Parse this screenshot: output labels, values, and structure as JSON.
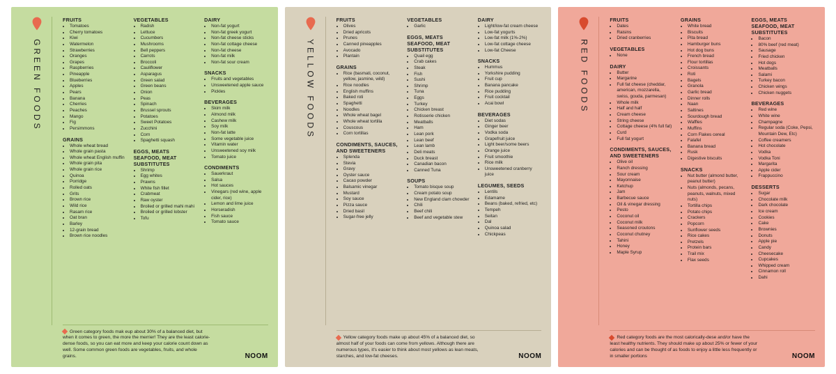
{
  "brand": "NOOM",
  "cards": [
    {
      "key": "green",
      "title": "GREEN FOODS",
      "bg_color": "#c5dca0",
      "pin_color": "#e86a4f",
      "line_color": "#9dbb72",
      "diamond_color": "#e86a4f",
      "footer": "Green category foods mak eup about 30% of a balanced diet, but when it comes to green, the more the merrier! They are the least calorie-dense foods, so you can eat more and keep your calorie count down as well. Some common green foods are vegetables, fruits, and whole grains.",
      "columns": [
        [
          {
            "title": "FRUITS",
            "items": [
              "Tomatoes",
              "Cherry tomatoes",
              "Kiwi",
              "Watermelon",
              "Strawberries",
              "Oranges",
              "Grapes",
              "Raspberries",
              "Pineapple",
              "Blueberries",
              "Apples",
              "Pears",
              "Banana",
              "Cherries",
              "Peaches",
              "Mango",
              "Fig",
              "Persimmons"
            ]
          },
          {
            "title": "GRAINS",
            "items": [
              "Whole wheat bread",
              "Whole grain pasta",
              "Whole wheat English muffin",
              "Whole grain pita",
              "Whole grain rice",
              "Quinoa",
              "Porridge",
              "Rolled oats",
              "Grits",
              "Brown rice",
              "Wild rice",
              "Rasam rice",
              "Oat bran",
              "Barley",
              "12-grain bread",
              "Brown rice noodles"
            ]
          }
        ],
        [
          {
            "title": "VEGETABLES",
            "items": [
              "Radish",
              "Lettuce",
              "Cucumbers",
              "Mushrooms",
              "Bell peppers",
              "Carrots",
              "Broccoli",
              "Cauliflower",
              "Asparagus",
              "Green salad",
              "Green beans",
              "Onion",
              "Peas",
              "Spinach",
              "Brussel sprouts",
              "Potatoes",
              "Sweet Potatoes",
              "Zucchini",
              "Corn",
              "Spaghetti squash"
            ]
          },
          {
            "title": "EGGS, MEATS SEAFOOD, MEAT SUBSTITUTES",
            "items": [
              "Shrimp",
              "Egg whites",
              "Prawns",
              "White fish fillet",
              "Crabmeat",
              "Raw oyster",
              "Broiled or grilled mahi mahi",
              "Broiled or grilled lobster",
              "Tofu"
            ]
          }
        ],
        [
          {
            "title": "DAIRY",
            "items": [
              "Non-fat yogurt",
              "Non-fat greek yogurt",
              "Non-fat cheese sticks",
              "Non-fat cottage cheese",
              "Non-fat cheese",
              "Non-fat milk",
              "Non-fat sour cream"
            ]
          },
          {
            "title": "SNACKS",
            "items": [
              "Fruits and vegetables",
              "Unsweetened apple sauce",
              "Pickles"
            ]
          },
          {
            "title": "BEVERAGES",
            "items": [
              "Skim milk",
              "Almond milk",
              "Cashew milk",
              "Soy milk",
              "Non-fat latte",
              "Some vegetable juice",
              "Vitamin water",
              "Unsweetened soy milk",
              "Tomato juice"
            ]
          },
          {
            "title": "CONDIMENTS",
            "items": [
              "Sauerkraut",
              "Salsa",
              "Hot sauces",
              "Vinegars (red wine, apple cider, rice)",
              "Lemon and lime juice",
              "Horseradish",
              "Fish sauce",
              "Tomato sauce"
            ]
          }
        ]
      ]
    },
    {
      "key": "yellow",
      "title": "YELLOW FOODS",
      "bg_color": "#d9d1bd",
      "pin_color": "#e86a4f",
      "line_color": "#b7ad93",
      "diamond_color": "#e86a4f",
      "footer": "Yellow category foods make up about 45% of a balanced diet, so almost half of your foods can come from yellows. Although there are numerous types, it's easier to think about most yellows as lean meats, starches, and low-fat cheeses.",
      "columns": [
        [
          {
            "title": "FRUITS",
            "items": [
              "Olives",
              "Dried apricots",
              "Prunes",
              "Canned pineapples",
              "Avocado",
              "Plantain"
            ]
          },
          {
            "title": "GRAINS",
            "items": [
              "Rice (basmati, coconut, yellow, jasmine, wild)",
              "Rice noodles",
              "English muffins",
              "Baked roti",
              "Spaghetti",
              "Noodles",
              "Whole wheat bagel",
              "Whole wheat tortilla",
              "Couscous",
              "Corn tortillas"
            ]
          },
          {
            "title": "CONDIMENTS, SAUCES, AND SWEETENERS",
            "items": [
              "Splenda",
              "Stevia",
              "Gravy",
              "Oyster sauce",
              "Cacao powder",
              "Balsamic vinegar",
              "Mustard",
              "Soy sauce",
              "Pizza sauce",
              "Dried basil",
              "Sugar-free jelly"
            ]
          }
        ],
        [
          {
            "title": "VEGETABLES",
            "items": [
              "Garlic"
            ]
          },
          {
            "title": "EGGS, MEATS SEAFOOD, MEAT SUBSTITUTES",
            "items": [
              "Quail egg",
              "Crab cakes",
              "Steak",
              "Fish",
              "Sushi",
              "Shrimp",
              "Tuna",
              "Eggs",
              "Turkey",
              "Chicken breast",
              "Rotisserie chicken",
              "Meatballs",
              "Ham",
              "Lean pork",
              "Lean beef",
              "Lean lamb",
              "Deli meats",
              "Duck breast",
              "Canadian bacon",
              "Canned Tuna"
            ]
          },
          {
            "title": "SOUPS",
            "items": [
              "Tomato bisque soup",
              "Cream potato soup",
              "New England clam chowder",
              "Chili",
              "Beef chili",
              "Beef and vegetable stew"
            ]
          }
        ],
        [
          {
            "title": "DAIRY",
            "items": [
              "Light/low-fat cream cheese",
              "Low-fat yogurts",
              "Low-fat milk (1%-2%)",
              "Low-fat cottage cheese",
              "Low-fat Cheese"
            ]
          },
          {
            "title": "SNACKS",
            "items": [
              "Hummus",
              "Yorkshire pudding",
              "Fruit cup",
              "Banana pancake",
              "Rice pudding",
              "Fruit cocktail",
              "Acai bowl"
            ]
          },
          {
            "title": "BEVERAGES",
            "items": [
              "Diet sodas",
              "Ginger beer",
              "Vodka soda",
              "Grapefruit juice",
              "Light beer/some beers",
              "Orange juice",
              "Fruit smoothie",
              "Rice milk",
              "Unsweetened cranberry juice"
            ]
          },
          {
            "title": "LEGUMES, SEEDS",
            "items": [
              "Lentils",
              "Edamame",
              "Beans (baked, refried, etc)",
              "Tempeh",
              "Seitan",
              "Dal",
              "Quinoa salad",
              "Chickpeas"
            ]
          }
        ]
      ]
    },
    {
      "key": "red",
      "title": "RED FOODS",
      "bg_color": "#f0a89a",
      "pin_color": "#d84b2e",
      "line_color": "#d88a78",
      "diamond_color": "#d84b2e",
      "footer": "Red category foods are the most calorically-dese and/or have the least healthy nutrients. They should make up about 25% or fewer of your calories and can be thought of as foods to enjoy a little less frequently or in smaller portions",
      "columns": [
        [
          {
            "title": "FRUITS",
            "items": [
              "Dates",
              "Raisins",
              "Dried cranberries"
            ]
          },
          {
            "title": "VEGETABLES",
            "items": [
              "None"
            ]
          },
          {
            "title": "DAIRY",
            "items": [
              "Butter",
              "Margarine",
              "Full fat cheese (cheddar, american, mozzarella, swiss, gouda, parmesan)",
              "Whole milk",
              "Half and half",
              "Cream cheese",
              "String cheese",
              "Cottage cheese (4% full fat)",
              "Curd",
              "Full fat yogurt"
            ]
          },
          {
            "title": "CONDIMENTS, SAUCES, AND SWEETENERS",
            "items": [
              "Olive oil",
              "Ranch dressing",
              "Sour cream",
              "Mayonnaise",
              "Ketchup",
              "Jam",
              "Barbecue sauce",
              "Oil & vinegar dressing",
              "Pesto",
              "Coconut oil",
              "Coconut milk",
              "Seasoned croutons",
              "Coconut chutney",
              "Tahini",
              "Honey",
              "Maple Syrup"
            ]
          }
        ],
        [
          {
            "title": "GRAINS",
            "items": [
              "White bread",
              "Biscuits",
              "Pita bread",
              "Hamburger buns",
              "Hot dog buns",
              "French bread",
              "Flour tortillas",
              "Croissants",
              "Roti",
              "Bagels",
              "Granola",
              "Garlic bread",
              "Dinner rolls",
              "Naan",
              "Saltines",
              "Sourdough bread",
              "Waffles",
              "Muffins",
              "Corn Flakes cereal",
              "Falafel",
              "Banana bread",
              "Rusk",
              "Digestive biscuits"
            ]
          },
          {
            "title": "SNACKS",
            "items": [
              "Nut butter (almond butter, peanut butter)",
              "Nuts (almonds, pecans, peanuts, walnuts, mixed nuts)",
              "Tortilla chips",
              "Potato chips",
              "Crackers",
              "Popcorn",
              "Sunflower seeds",
              "Rice cakes",
              "Pretzels",
              "Protein bars",
              "Trail mix",
              "Flax seeds"
            ]
          }
        ],
        [
          {
            "title": "EGGS, MEATS SEAFOOD, MEAT SUBSTITUTES",
            "items": [
              "Bacon",
              "80% beef (red meat)",
              "Sausage",
              "Fried chicken",
              "Hot dogs",
              "Meatballs",
              "Salami",
              "Turkey bacon",
              "Chicken wings",
              "Chicken nuggets"
            ]
          },
          {
            "title": "BEVERAGES",
            "items": [
              "Red wine",
              "White wine",
              "Champagne",
              "Regular soda (Coke, Pepsi, Mountain Dew, Etc)",
              "Coffee creamers",
              "Hot chocolate",
              "Vodka",
              "Vodka Toni",
              "Margarita",
              "Apple cider",
              "Frappuccino"
            ]
          },
          {
            "title": "DESSERTS",
            "items": [
              "Sugar",
              "Chocolate milk",
              "Dark chocolate",
              "Ice cream",
              "Cookies",
              "Cake",
              "Brownies",
              "Donuts",
              "Apple pie",
              "Candy",
              "Cheesecake",
              "Cupcakes",
              "Whipped cream",
              "Cinnamon roll",
              "Dahi"
            ]
          }
        ]
      ]
    }
  ]
}
